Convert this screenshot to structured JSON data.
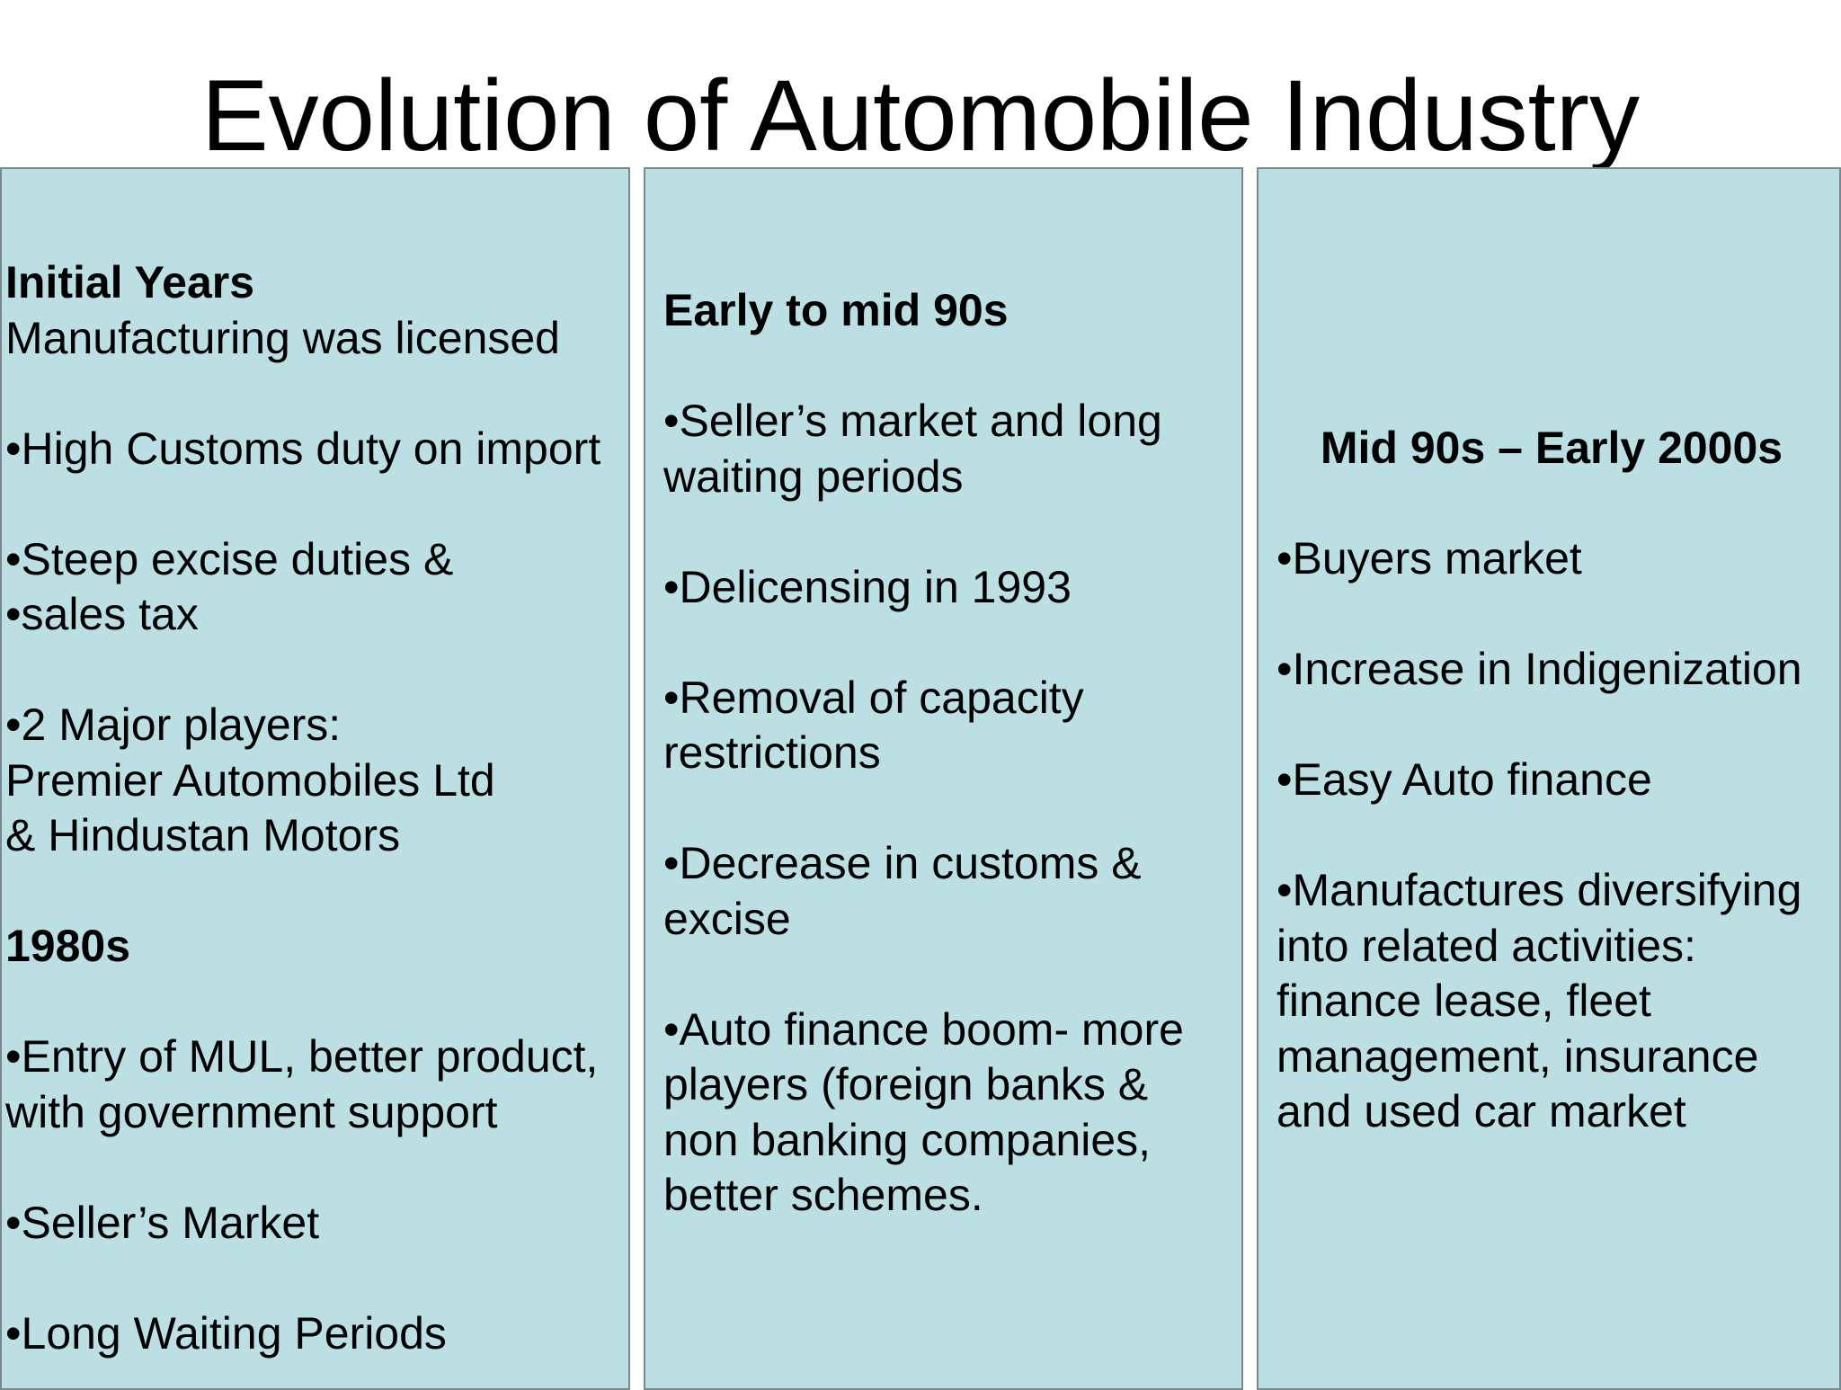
{
  "title": "Evolution of Automobile Industry",
  "columns": [
    {
      "sections": [
        {
          "heading": "Initial Years",
          "intro": "Manufacturing was licensed",
          "bullets": [
            [
              "•High Customs duty on import"
            ],
            [
              "•Steep excise duties &",
              "•sales tax"
            ],
            [
              "•2 Major players:",
              "Premier Automobiles Ltd",
              "& Hindustan Motors"
            ]
          ]
        },
        {
          "heading": "1980s",
          "bullets": [
            [
              "•Entry of MUL, better product,",
              "with government support"
            ],
            [
              "•Seller’s Market"
            ],
            [
              "•Long Waiting Periods"
            ]
          ]
        }
      ]
    },
    {
      "heading": "Early to mid 90s",
      "bullets": [
        [
          "•Seller’s market and long",
          "waiting periods"
        ],
        [
          "•Delicensing in 1993"
        ],
        [
          "•Removal of capacity",
          "restrictions"
        ],
        [
          "•Decrease in customs &",
          "excise"
        ],
        [
          "•Auto finance boom- more",
          "players (foreign banks &",
          "non banking companies,",
          "better schemes."
        ]
      ]
    },
    {
      "heading": "Mid 90s – Early 2000s",
      "bullets": [
        [
          "•Buyers market"
        ],
        [
          "•Increase in Indigenization"
        ],
        [
          "•Easy Auto finance"
        ],
        [
          "•Manufactures diversifying",
          "into related activities:",
          "finance lease, fleet",
          "management, insurance",
          "and used car market"
        ]
      ]
    }
  ]
}
